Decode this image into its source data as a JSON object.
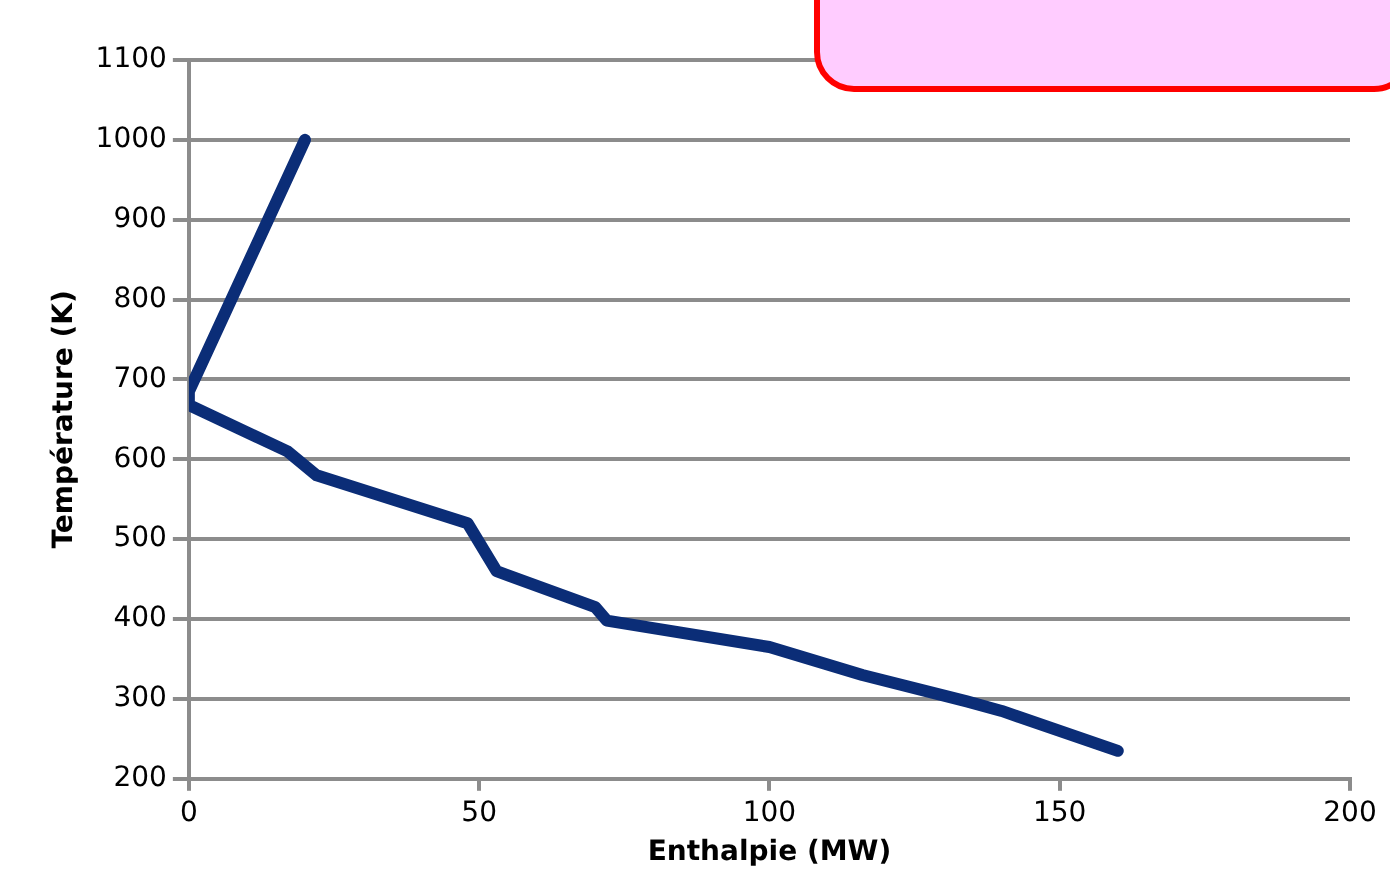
{
  "chart_data": {
    "type": "line",
    "xlabel": "Enthalpie (MW)",
    "ylabel": "Température (K)",
    "series": [
      {
        "color": "#0b2d77",
        "x": [
          20,
          0,
          0,
          17,
          22,
          48,
          53,
          70,
          72,
          100,
          116,
          134,
          140,
          160
        ],
        "values": [
          1000,
          685,
          668,
          610,
          580,
          520,
          460,
          415,
          398,
          365,
          330,
          297,
          285,
          235
        ]
      }
    ],
    "xlim": [
      0,
      200
    ],
    "xticks": [
      0,
      50,
      100,
      150,
      200
    ],
    "ylim": [
      200,
      1100
    ],
    "yticks": [
      200,
      300,
      400,
      500,
      600,
      700,
      800,
      900,
      1000,
      1100
    ],
    "grid": "y",
    "legend": false,
    "marker": "none",
    "line_style": "solid"
  }
}
